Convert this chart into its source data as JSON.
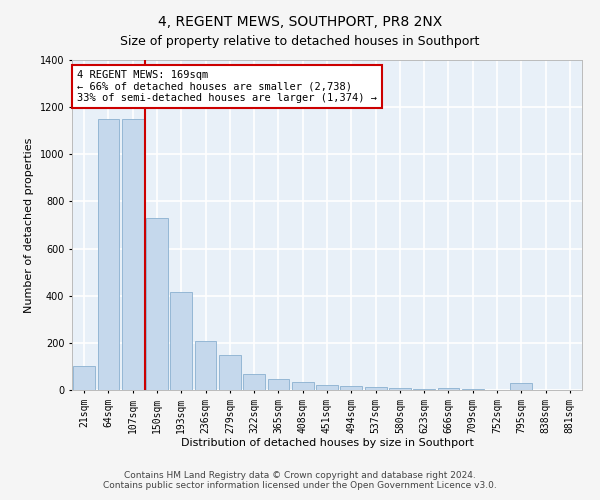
{
  "title": "4, REGENT MEWS, SOUTHPORT, PR8 2NX",
  "subtitle": "Size of property relative to detached houses in Southport",
  "xlabel": "Distribution of detached houses by size in Southport",
  "ylabel": "Number of detached properties",
  "footer1": "Contains HM Land Registry data © Crown copyright and database right 2024.",
  "footer2": "Contains public sector information licensed under the Open Government Licence v3.0.",
  "categories": [
    "21sqm",
    "64sqm",
    "107sqm",
    "150sqm",
    "193sqm",
    "236sqm",
    "279sqm",
    "322sqm",
    "365sqm",
    "408sqm",
    "451sqm",
    "494sqm",
    "537sqm",
    "580sqm",
    "623sqm",
    "666sqm",
    "709sqm",
    "752sqm",
    "795sqm",
    "838sqm",
    "881sqm"
  ],
  "values": [
    100,
    1150,
    1150,
    730,
    415,
    210,
    150,
    70,
    48,
    33,
    22,
    15,
    12,
    8,
    5,
    10,
    5,
    0,
    28,
    0,
    0
  ],
  "bar_color": "#c5d8ec",
  "bar_edge_color": "#8ab0d0",
  "bg_color": "#e8f0f8",
  "grid_color": "#ffffff",
  "fig_bg_color": "#f5f5f5",
  "vline_color": "#cc0000",
  "vline_x": 2.5,
  "annotation_line1": "4 REGENT MEWS: 169sqm",
  "annotation_line2": "← 66% of detached houses are smaller (2,738)",
  "annotation_line3": "33% of semi-detached houses are larger (1,374) →",
  "annotation_box_color": "#ffffff",
  "annotation_border_color": "#cc0000",
  "ylim": [
    0,
    1400
  ],
  "yticks": [
    0,
    200,
    400,
    600,
    800,
    1000,
    1200,
    1400
  ],
  "title_fontsize": 10,
  "subtitle_fontsize": 9,
  "xlabel_fontsize": 8,
  "ylabel_fontsize": 8,
  "tick_fontsize": 7,
  "annotation_fontsize": 7.5,
  "footer_fontsize": 6.5
}
